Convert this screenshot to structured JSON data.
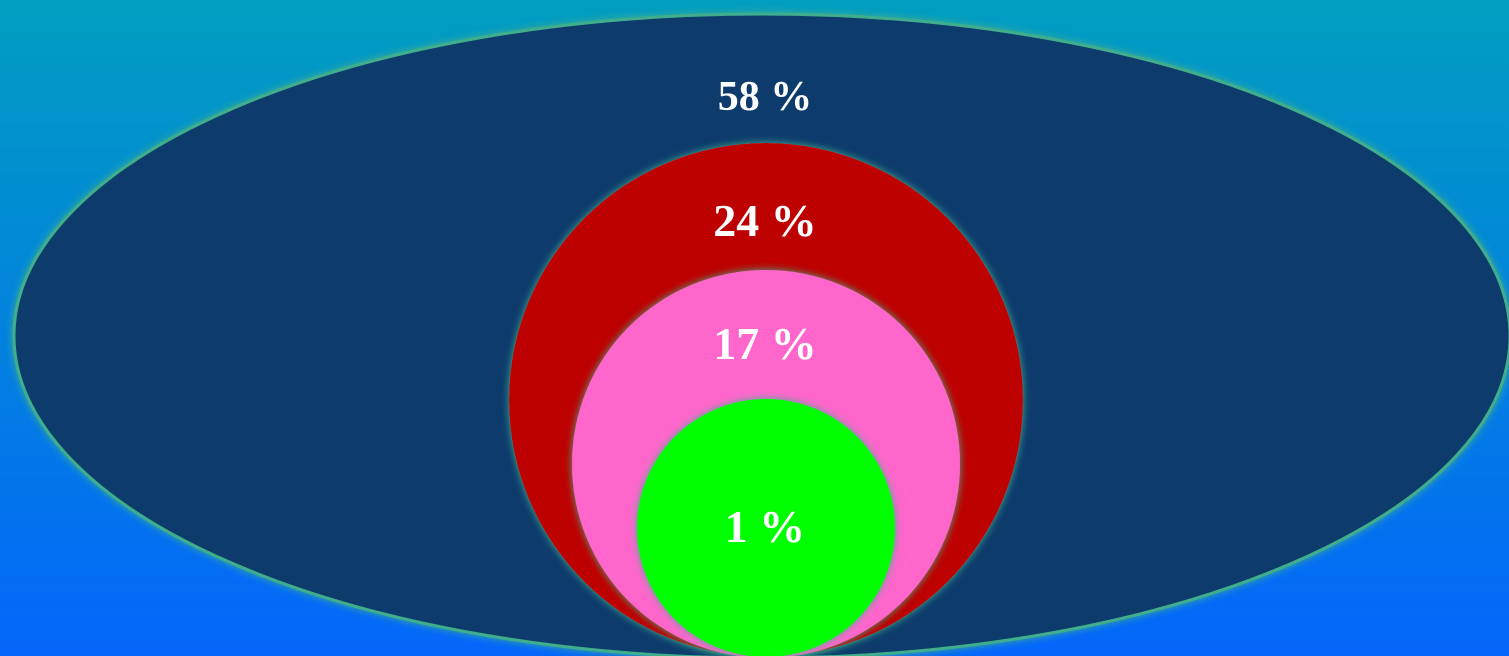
{
  "diagram": {
    "layers": [
      {
        "id": "outer",
        "label": "58 %",
        "fill": "#0a3b6c"
      },
      {
        "id": "red",
        "label": "24 %",
        "fill": "#bd0000"
      },
      {
        "id": "pink",
        "label": "17 %",
        "fill": "#ff66cc"
      },
      {
        "id": "green",
        "label": "1 %",
        "fill": "#00ff00"
      }
    ],
    "glow_color": "#3fae8c",
    "background_top": "#019ec0",
    "background_bottom": "#0466fb"
  }
}
